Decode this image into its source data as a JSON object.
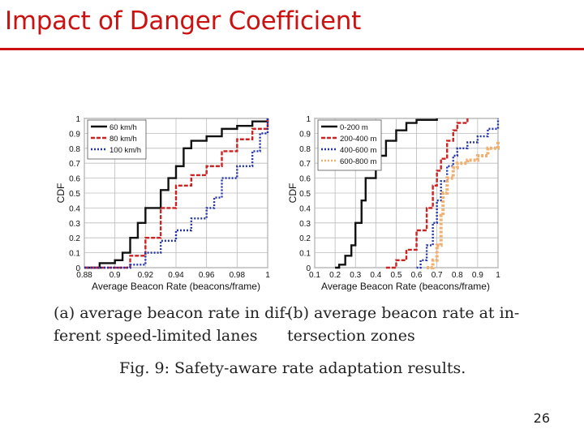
{
  "slide": {
    "title": "Impact of Danger Coefficient",
    "page_number": "26"
  },
  "figure": {
    "caption_a_line1": "(a) average beacon rate in dif-",
    "caption_a_line2": "ferent speed-limited lanes",
    "caption_b_line1": "(b) average beacon rate at in-",
    "caption_b_line2": "tersection zones",
    "fig_caption": "Fig. 9: Safety-aware rate adaptation results."
  },
  "chart_data": [
    {
      "type": "line",
      "xlabel": "Average Beacon Rate (beacons/frame)",
      "ylabel": "CDF",
      "xlim": [
        0.88,
        1.0
      ],
      "ylim": [
        0,
        1
      ],
      "x_ticks": [
        "0.88",
        "0.9",
        "0.92",
        "0.94",
        "0.96",
        "0.98",
        "1"
      ],
      "y_ticks": [
        "0",
        "0.1",
        "0.2",
        "0.3",
        "0.4",
        "0.5",
        "0.6",
        "0.7",
        "0.8",
        "0.9",
        "1"
      ],
      "grid": true,
      "legend": "top-left",
      "series": [
        {
          "name": "60 km/h",
          "color": "#111111",
          "style": "solid",
          "x": [
            0.88,
            0.89,
            0.9,
            0.905,
            0.91,
            0.915,
            0.92,
            0.93,
            0.935,
            0.94,
            0.945,
            0.95,
            0.96,
            0.97,
            0.98,
            0.99,
            1.0
          ],
          "y": [
            0.0,
            0.03,
            0.05,
            0.1,
            0.2,
            0.3,
            0.4,
            0.52,
            0.6,
            0.68,
            0.8,
            0.85,
            0.88,
            0.93,
            0.95,
            0.98,
            1.0
          ]
        },
        {
          "name": "80 km/h",
          "color": "#cc2222",
          "style": "dashed",
          "x": [
            0.88,
            0.9,
            0.91,
            0.92,
            0.93,
            0.94,
            0.95,
            0.96,
            0.97,
            0.98,
            0.99,
            1.0
          ],
          "y": [
            0.0,
            0.0,
            0.08,
            0.2,
            0.4,
            0.55,
            0.62,
            0.68,
            0.78,
            0.86,
            0.93,
            1.0
          ]
        },
        {
          "name": "100 km/h",
          "color": "#2233aa",
          "style": "dotted",
          "x": [
            0.88,
            0.91,
            0.92,
            0.93,
            0.94,
            0.95,
            0.96,
            0.965,
            0.97,
            0.98,
            0.99,
            0.995,
            1.0
          ],
          "y": [
            0.0,
            0.02,
            0.1,
            0.18,
            0.25,
            0.33,
            0.4,
            0.47,
            0.6,
            0.68,
            0.78,
            0.9,
            1.0
          ]
        }
      ]
    },
    {
      "type": "line",
      "xlabel": "Average Beacon Rate (beacons/frame)",
      "ylabel": "CDF",
      "xlim": [
        0.1,
        1.0
      ],
      "ylim": [
        0,
        1
      ],
      "x_ticks": [
        "0.1",
        "0.2",
        "0.3",
        "0.4",
        "0.5",
        "0.6",
        "0.7",
        "0.8",
        "0.9",
        "1"
      ],
      "y_ticks": [
        "0",
        "0.1",
        "0.2",
        "0.3",
        "0.4",
        "0.5",
        "0.6",
        "0.7",
        "0.8",
        "0.9",
        "1"
      ],
      "grid": true,
      "legend": "top-left",
      "series": [
        {
          "name": "0-200 m",
          "color": "#111111",
          "style": "solid",
          "x": [
            0.2,
            0.22,
            0.25,
            0.28,
            0.3,
            0.33,
            0.35,
            0.4,
            0.45,
            0.5,
            0.55,
            0.6,
            0.7
          ],
          "y": [
            0.0,
            0.02,
            0.08,
            0.15,
            0.3,
            0.45,
            0.6,
            0.75,
            0.85,
            0.92,
            0.97,
            0.99,
            1.0
          ]
        },
        {
          "name": "200-400 m",
          "color": "#cc2222",
          "style": "dashed",
          "x": [
            0.45,
            0.5,
            0.55,
            0.6,
            0.65,
            0.68,
            0.7,
            0.72,
            0.75,
            0.78,
            0.8,
            0.85
          ],
          "y": [
            0.0,
            0.05,
            0.12,
            0.25,
            0.4,
            0.55,
            0.65,
            0.73,
            0.85,
            0.92,
            0.97,
            1.0
          ]
        },
        {
          "name": "400-600 m",
          "color": "#2233aa",
          "style": "dotted",
          "x": [
            0.6,
            0.62,
            0.65,
            0.68,
            0.7,
            0.72,
            0.75,
            0.78,
            0.8,
            0.85,
            0.9,
            0.95,
            1.0
          ],
          "y": [
            0.0,
            0.05,
            0.15,
            0.3,
            0.45,
            0.58,
            0.68,
            0.75,
            0.8,
            0.84,
            0.88,
            0.93,
            1.0
          ]
        },
        {
          "name": "600-800 m",
          "color": "#f0b070",
          "style": "dotted",
          "x": [
            0.65,
            0.68,
            0.7,
            0.72,
            0.73,
            0.75,
            0.78,
            0.8,
            0.85,
            0.9,
            0.95,
            1.0
          ],
          "y": [
            0.0,
            0.05,
            0.15,
            0.35,
            0.5,
            0.6,
            0.67,
            0.7,
            0.72,
            0.75,
            0.8,
            0.85
          ]
        }
      ]
    }
  ]
}
